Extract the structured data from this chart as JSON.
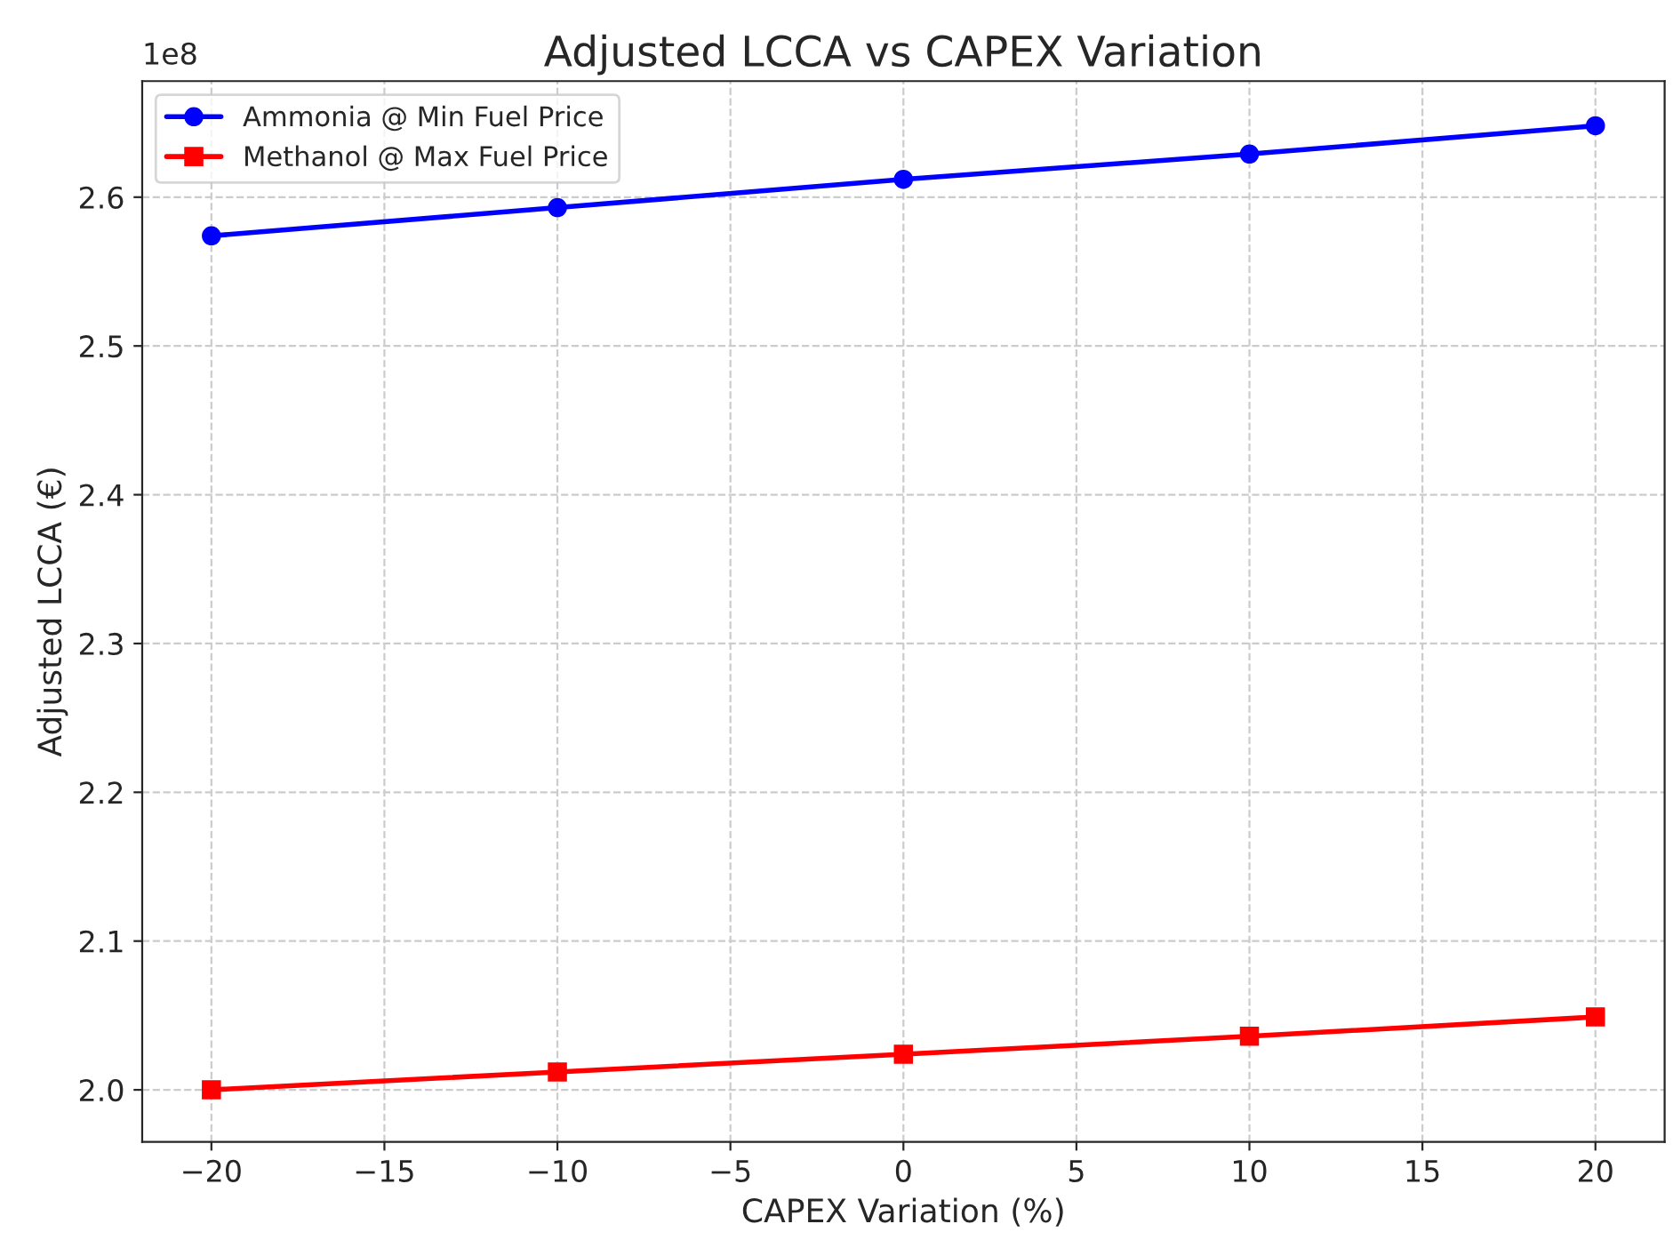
{
  "chart_data": {
    "type": "line",
    "title": "Adjusted LCCA vs CAPEX Variation",
    "xlabel": "CAPEX Variation (%)",
    "ylabel": "Adjusted LCCA (€)",
    "x": [
      -20,
      -10,
      0,
      10,
      20
    ],
    "series": [
      {
        "name": "Ammonia @ Min Fuel Price",
        "color": "#0000ff",
        "marker": "circle",
        "values": [
          2.574,
          2.593,
          2.612,
          2.629,
          2.648
        ]
      },
      {
        "name": "Methanol @ Max Fuel Price",
        "color": "#ff0000",
        "marker": "square",
        "values": [
          2.0,
          2.012,
          2.024,
          2.036,
          2.049
        ]
      }
    ],
    "xlim": [
      -22,
      22
    ],
    "xticks": [
      {
        "value": -20,
        "label": "−20"
      },
      {
        "value": -15,
        "label": "−15"
      },
      {
        "value": -10,
        "label": "−10"
      },
      {
        "value": -5,
        "label": "−5"
      },
      0,
      5,
      10,
      15,
      20
    ],
    "ylim": [
      1.965,
      2.678
    ],
    "yticks": [
      {
        "value": 2.0,
        "label": "2.0"
      },
      2.1,
      2.2,
      2.3,
      2.4,
      2.5,
      2.6
    ],
    "annotations": [
      "1e8"
    ],
    "grid": true,
    "legend": "top left",
    "line_style": "solid"
  }
}
